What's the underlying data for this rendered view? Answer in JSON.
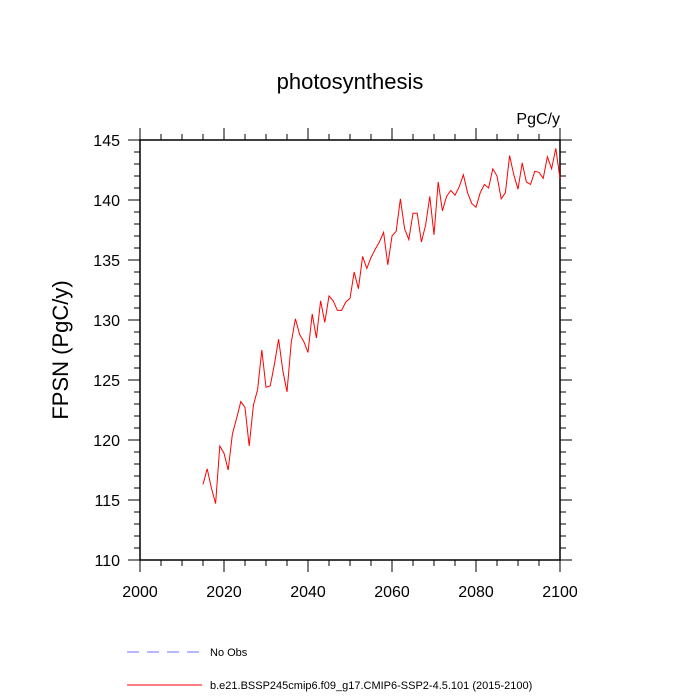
{
  "chart_data": {
    "type": "line",
    "title": "photosynthesis",
    "units": "PgC/y",
    "ylabel": "FPSN  (PgC/y)",
    "xlabel": "",
    "xlim": [
      2000,
      2100
    ],
    "ylim": [
      110,
      145
    ],
    "x_ticks": [
      2000,
      2020,
      2040,
      2060,
      2080,
      2100
    ],
    "y_ticks": [
      110,
      115,
      120,
      125,
      130,
      135,
      140,
      145
    ],
    "x_tick_labels": [
      "2000",
      "2020",
      "2040",
      "2060",
      "2080",
      "2100"
    ],
    "y_tick_labels": [
      "110",
      "115",
      "120",
      "125",
      "130",
      "135",
      "140",
      "145"
    ],
    "grid": false,
    "legend_position": "bottom",
    "series": [
      {
        "name": "No Obs",
        "color": "#6f6fff",
        "style": "dashed",
        "x": [],
        "y": []
      },
      {
        "name": "b.e21.BSSP245cmip6.f09_g17.CMIP6-SSP2-4.5.101 (2015-2100)",
        "color": "#ff0000",
        "style": "solid",
        "x": [
          2015,
          2016,
          2017,
          2018,
          2019,
          2020,
          2021,
          2022,
          2023,
          2024,
          2025,
          2026,
          2027,
          2028,
          2029,
          2030,
          2031,
          2032,
          2033,
          2034,
          2035,
          2036,
          2037,
          2038,
          2039,
          2040,
          2041,
          2042,
          2043,
          2044,
          2045,
          2046,
          2047,
          2048,
          2049,
          2050,
          2051,
          2052,
          2053,
          2054,
          2055,
          2056,
          2057,
          2058,
          2059,
          2060,
          2061,
          2062,
          2063,
          2064,
          2065,
          2066,
          2067,
          2068,
          2069,
          2070,
          2071,
          2072,
          2073,
          2074,
          2075,
          2076,
          2077,
          2078,
          2079,
          2080,
          2081,
          2082,
          2083,
          2084,
          2085,
          2086,
          2087,
          2088,
          2089,
          2090,
          2091,
          2092,
          2093,
          2094,
          2095,
          2096,
          2097,
          2098,
          2099,
          2100
        ],
        "y": [
          116.3,
          117.6,
          116.0,
          114.7,
          119.5,
          118.9,
          117.5,
          120.5,
          121.8,
          123.2,
          122.7,
          119.5,
          122.9,
          124.2,
          127.5,
          124.4,
          124.5,
          126.3,
          128.4,
          125.8,
          124.0,
          128.1,
          130.1,
          128.8,
          128.2,
          127.3,
          130.5,
          128.5,
          131.6,
          129.8,
          132.0,
          131.6,
          130.8,
          130.8,
          131.5,
          131.8,
          134.0,
          132.6,
          135.3,
          134.3,
          135.2,
          135.9,
          136.5,
          137.3,
          134.6,
          137.0,
          137.4,
          140.1,
          137.6,
          136.7,
          138.9,
          138.9,
          136.5,
          137.9,
          140.3,
          137.1,
          141.5,
          139.1,
          140.3,
          140.8,
          140.4,
          141.1,
          142.1,
          140.6,
          139.7,
          139.4,
          140.6,
          141.3,
          141.0,
          142.6,
          142.0,
          140.1,
          140.6,
          143.7,
          142.1,
          140.9,
          143.1,
          141.5,
          141.3,
          142.4,
          142.3,
          141.8,
          143.6,
          142.6,
          144.3,
          141.8
        ]
      }
    ]
  }
}
